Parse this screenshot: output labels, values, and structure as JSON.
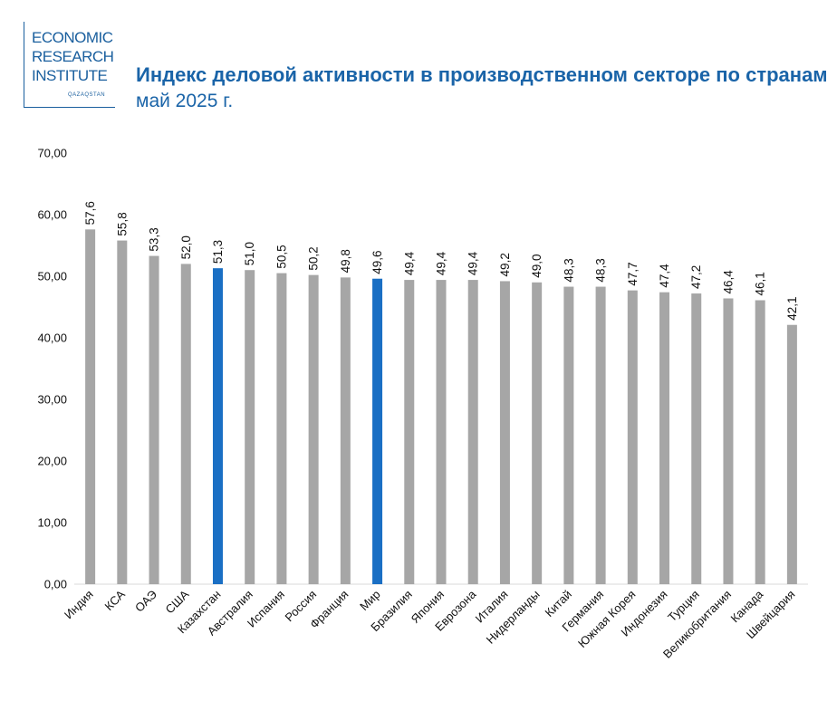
{
  "logo": {
    "line1": "ECONOMIC",
    "line2": "RESEARCH",
    "line3": "INSTITUTE",
    "sub": "QAZAQSTAN"
  },
  "header": {
    "title": "Индекс деловой активности в производственном секторе по странам",
    "subtitle": "май 2025 г."
  },
  "colors": {
    "bar_default": "#a6a6a6",
    "bar_highlight": "#1a6fc4",
    "title": "#1a64a8",
    "grid": "#d9d9d9"
  },
  "chart_data": {
    "type": "bar",
    "categories": [
      "Индия",
      "КСА",
      "ОАЭ",
      "США",
      "Казахстан",
      "Австралия",
      "Испания",
      "Россия",
      "Франция",
      "Мир",
      "Бразилия",
      "Япония",
      "Еврозона",
      "Италия",
      "Нидерланды",
      "Китай",
      "Германия",
      "Южная Корея",
      "Индонезия",
      "Турция",
      "Великобритания",
      "Канада",
      "Швейцария"
    ],
    "values": [
      57.6,
      55.8,
      53.3,
      52.0,
      51.3,
      51.0,
      50.5,
      50.2,
      49.8,
      49.6,
      49.4,
      49.4,
      49.4,
      49.2,
      49.0,
      48.3,
      48.3,
      47.7,
      47.4,
      47.2,
      46.4,
      46.1,
      42.1
    ],
    "value_labels": [
      "57,6",
      "55,8",
      "53,3",
      "52,0",
      "51,3",
      "51,0",
      "50,5",
      "50,2",
      "49,8",
      "49,6",
      "49,4",
      "49,4",
      "49,4",
      "49,2",
      "49,0",
      "48,3",
      "48,3",
      "47,7",
      "47,4",
      "47,2",
      "46,4",
      "46,1",
      "42,1"
    ],
    "highlighted": [
      "Казахстан",
      "Мир"
    ],
    "ylim": [
      0,
      70
    ],
    "yticks": [
      0,
      10,
      20,
      30,
      40,
      50,
      60,
      70
    ],
    "ytick_labels": [
      "0,00",
      "10,00",
      "20,00",
      "30,00",
      "40,00",
      "50,00",
      "60,00",
      "70,00"
    ],
    "grid": false,
    "legend": "none"
  }
}
